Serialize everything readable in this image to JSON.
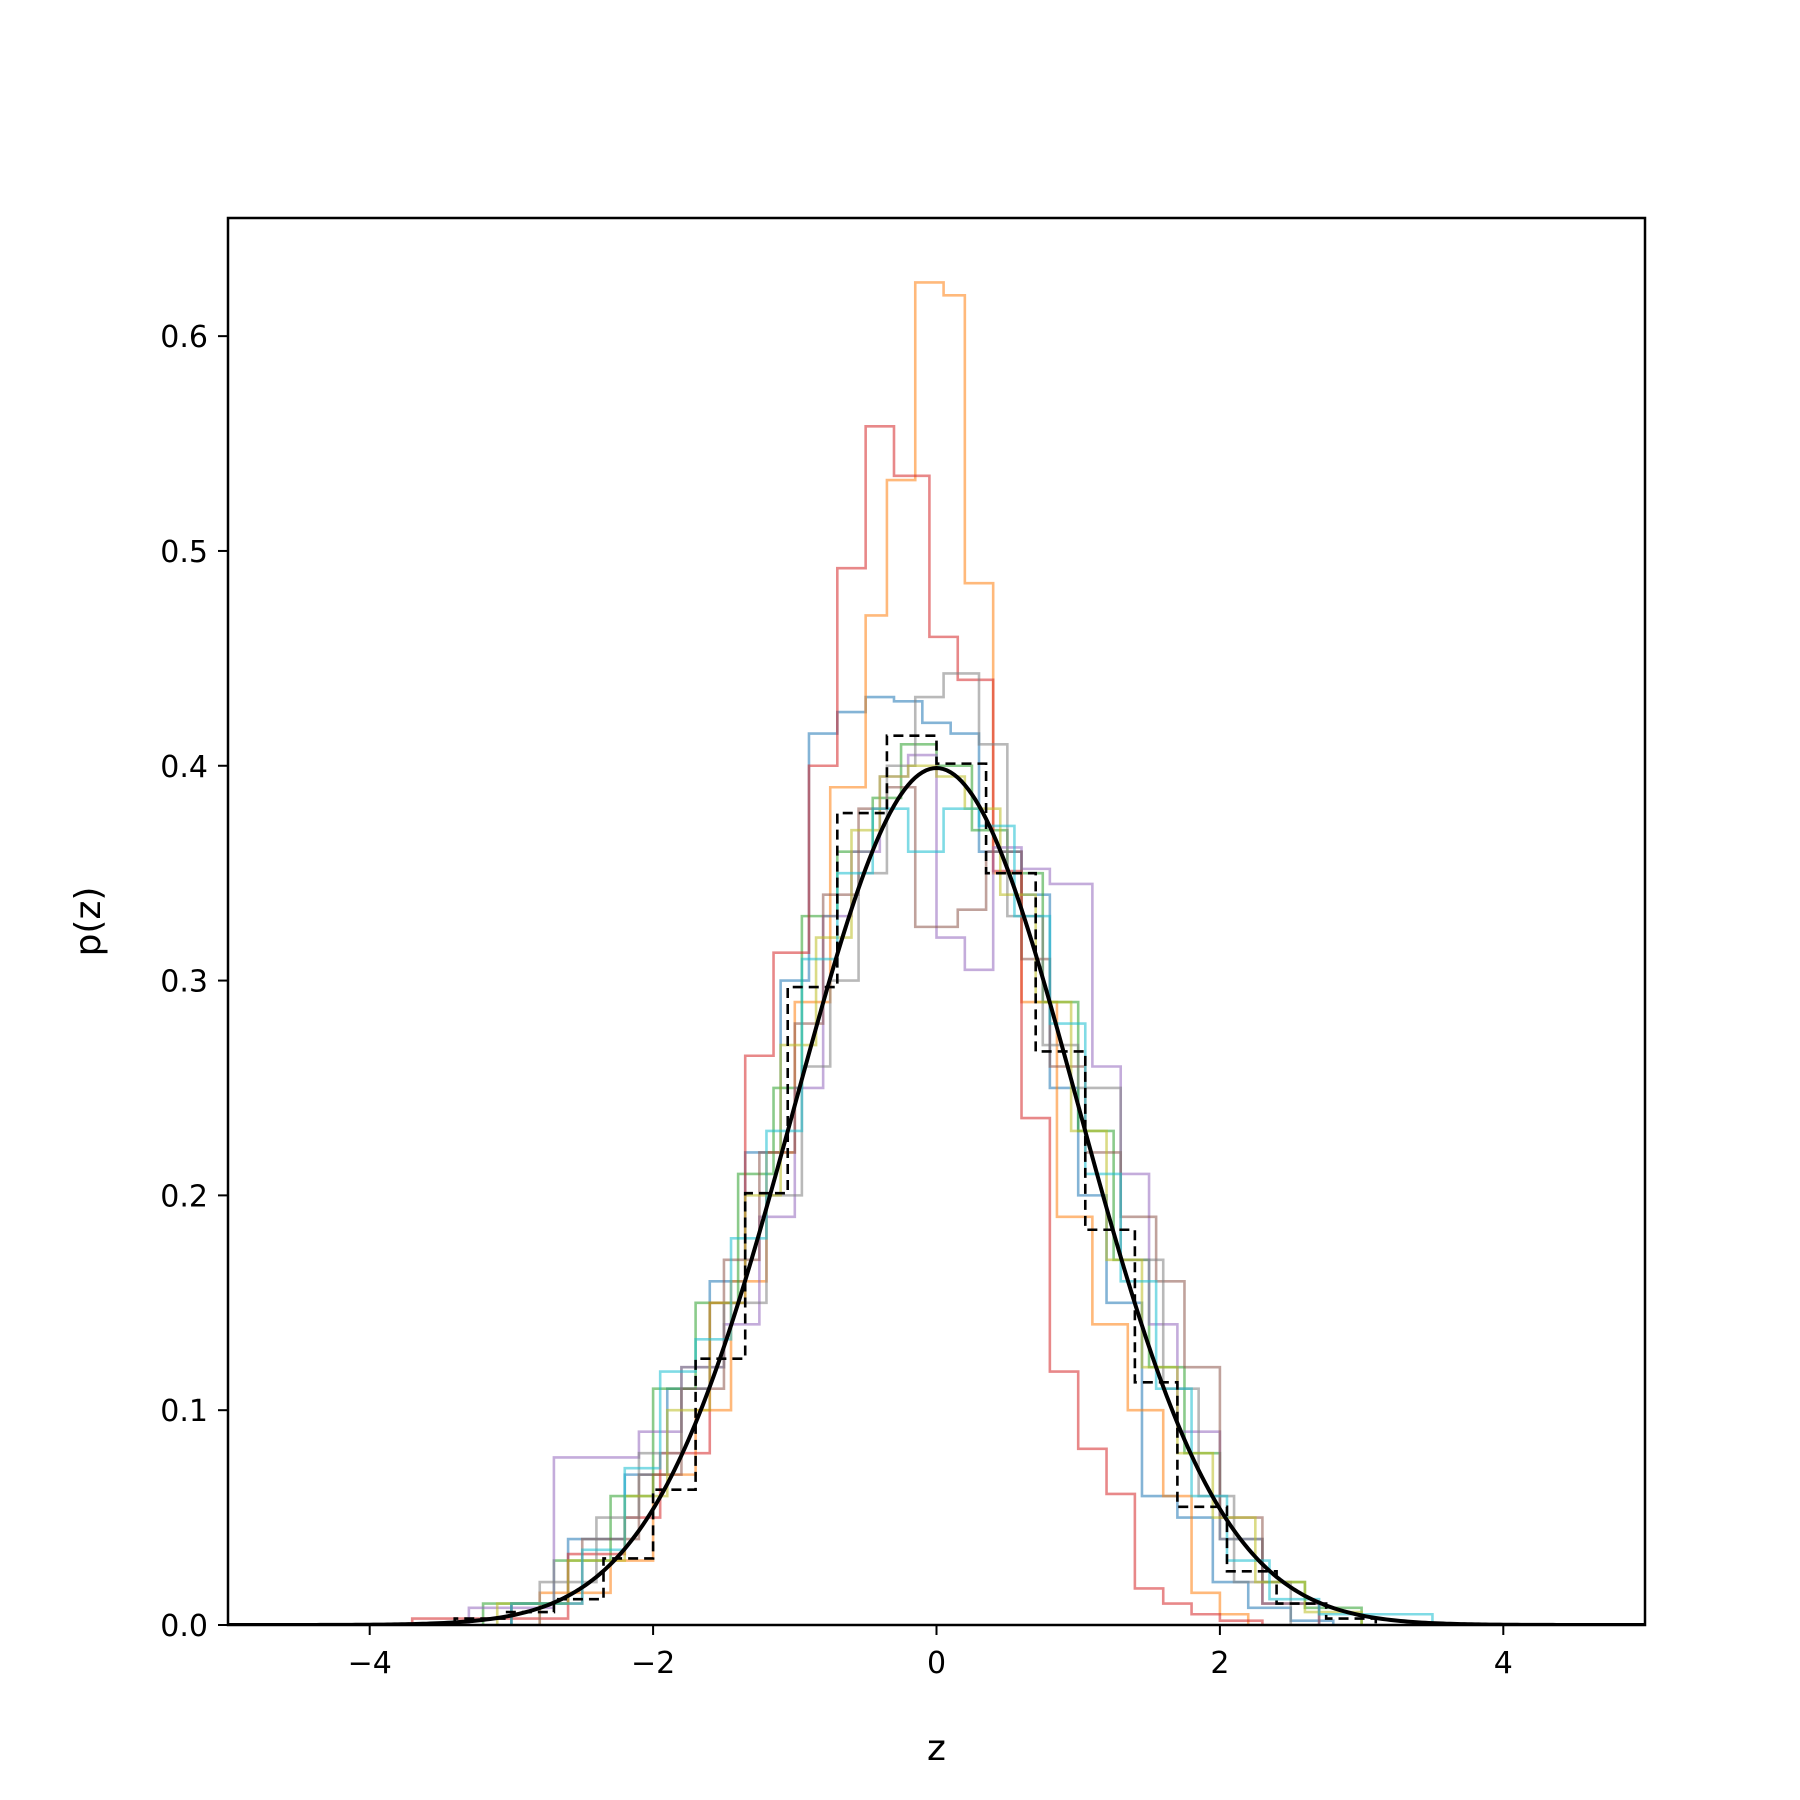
{
  "chart_data": {
    "type": "histogram",
    "title": "",
    "xlabel": "z",
    "ylabel": "p(z)",
    "xlim": [
      -5,
      5
    ],
    "ylim": [
      0,
      0.655
    ],
    "xticks": [
      -4,
      -2,
      0,
      2,
      4
    ],
    "xtick_labels": [
      "−4",
      "−2",
      "0",
      "2",
      "4"
    ],
    "yticks": [
      0.0,
      0.1,
      0.2,
      0.3,
      0.4,
      0.5,
      0.6
    ],
    "ytick_labels": [
      "0.0",
      "0.1",
      "0.2",
      "0.3",
      "0.4",
      "0.5",
      "0.6"
    ],
    "grid": false,
    "legend": "none",
    "series": [
      {
        "color": "#1f77b4",
        "style": "step",
        "alpha": 0.55,
        "edges": [
          -3.0,
          -2.6,
          -2.2,
          -1.9,
          -1.6,
          -1.35,
          -1.1,
          -0.9,
          -0.7,
          -0.5,
          -0.3,
          -0.1,
          0.1,
          0.3,
          0.6,
          0.8,
          1.0,
          1.2,
          1.45,
          1.7,
          1.95,
          2.2,
          2.5,
          2.8
        ],
        "values": [
          0.01,
          0.04,
          0.07,
          0.11,
          0.16,
          0.22,
          0.3,
          0.415,
          0.425,
          0.432,
          0.43,
          0.42,
          0.415,
          0.36,
          0.34,
          0.25,
          0.2,
          0.15,
          0.06,
          0.05,
          0.02,
          0.008,
          0.002
        ]
      },
      {
        "color": "#ff7f0e",
        "style": "step",
        "alpha": 0.55,
        "edges": [
          -2.8,
          -2.3,
          -2.0,
          -1.7,
          -1.45,
          -1.2,
          -1.0,
          -0.75,
          -0.5,
          -0.35,
          -0.15,
          0.05,
          0.2,
          0.4,
          0.6,
          0.85,
          1.1,
          1.35,
          1.6,
          1.8,
          2.0,
          2.2
        ],
        "values": [
          0.015,
          0.03,
          0.07,
          0.1,
          0.16,
          0.22,
          0.29,
          0.39,
          0.47,
          0.533,
          0.625,
          0.619,
          0.485,
          0.35,
          0.29,
          0.19,
          0.14,
          0.1,
          0.06,
          0.015,
          0.005
        ]
      },
      {
        "color": "#2ca02c",
        "style": "step",
        "alpha": 0.55,
        "edges": [
          -3.2,
          -2.7,
          -2.3,
          -2.0,
          -1.7,
          -1.4,
          -1.15,
          -0.95,
          -0.7,
          -0.45,
          -0.25,
          0.0,
          0.25,
          0.5,
          0.75,
          1.0,
          1.25,
          1.5,
          1.75,
          2.0,
          2.3,
          2.6,
          3.0
        ],
        "values": [
          0.01,
          0.03,
          0.06,
          0.11,
          0.15,
          0.21,
          0.25,
          0.33,
          0.36,
          0.385,
          0.41,
          0.4,
          0.37,
          0.35,
          0.29,
          0.23,
          0.17,
          0.12,
          0.08,
          0.04,
          0.02,
          0.008
        ]
      },
      {
        "color": "#d62728",
        "style": "step",
        "alpha": 0.55,
        "edges": [
          -3.7,
          -2.6,
          -2.2,
          -1.95,
          -1.6,
          -1.35,
          -1.15,
          -0.9,
          -0.7,
          -0.5,
          -0.3,
          -0.05,
          0.15,
          0.4,
          0.6,
          0.8,
          1.0,
          1.2,
          1.4,
          1.6,
          1.8,
          2.0,
          2.3
        ],
        "values": [
          0.003,
          0.033,
          0.05,
          0.08,
          0.15,
          0.265,
          0.313,
          0.4,
          0.492,
          0.558,
          0.535,
          0.46,
          0.44,
          0.351,
          0.236,
          0.118,
          0.082,
          0.061,
          0.017,
          0.01,
          0.005,
          0.002
        ]
      },
      {
        "color": "#9467bd",
        "style": "step",
        "alpha": 0.55,
        "edges": [
          -3.3,
          -2.7,
          -2.1,
          -1.8,
          -1.5,
          -1.25,
          -1.0,
          -0.8,
          -0.6,
          -0.4,
          -0.2,
          0.0,
          0.2,
          0.4,
          0.6,
          0.8,
          1.1,
          1.3,
          1.5,
          1.7,
          2.0,
          2.3,
          2.7
        ],
        "values": [
          0.008,
          0.078,
          0.09,
          0.12,
          0.14,
          0.19,
          0.25,
          0.33,
          0.36,
          0.395,
          0.405,
          0.32,
          0.305,
          0.362,
          0.352,
          0.345,
          0.26,
          0.21,
          0.14,
          0.09,
          0.04,
          0.01
        ]
      },
      {
        "color": "#8c564b",
        "style": "step",
        "alpha": 0.55,
        "edges": [
          -3.0,
          -2.5,
          -2.1,
          -1.8,
          -1.5,
          -1.25,
          -1.0,
          -0.8,
          -0.55,
          -0.35,
          -0.15,
          0.15,
          0.35,
          0.6,
          0.8,
          1.05,
          1.3,
          1.55,
          1.75,
          2.0,
          2.3,
          2.7
        ],
        "values": [
          0.01,
          0.04,
          0.07,
          0.11,
          0.17,
          0.22,
          0.28,
          0.34,
          0.38,
          0.39,
          0.325,
          0.333,
          0.36,
          0.31,
          0.26,
          0.22,
          0.19,
          0.16,
          0.12,
          0.05,
          0.01
        ]
      },
      {
        "color": "#7f7f7f",
        "style": "step",
        "alpha": 0.55,
        "edges": [
          -2.8,
          -2.4,
          -2.1,
          -1.8,
          -1.5,
          -1.2,
          -0.95,
          -0.75,
          -0.55,
          -0.35,
          -0.15,
          0.05,
          0.3,
          0.5,
          0.75,
          1.0,
          1.3,
          1.6,
          1.85,
          2.1,
          2.5
        ],
        "values": [
          0.02,
          0.05,
          0.08,
          0.12,
          0.15,
          0.2,
          0.26,
          0.3,
          0.35,
          0.4,
          0.432,
          0.443,
          0.41,
          0.33,
          0.27,
          0.25,
          0.17,
          0.11,
          0.06,
          0.02
        ]
      },
      {
        "color": "#bcbd22",
        "style": "step",
        "alpha": 0.55,
        "edges": [
          -3.1,
          -2.6,
          -2.2,
          -1.9,
          -1.6,
          -1.35,
          -1.1,
          -0.85,
          -0.6,
          -0.4,
          -0.2,
          0.0,
          0.2,
          0.45,
          0.7,
          0.95,
          1.2,
          1.45,
          1.7,
          1.95,
          2.25,
          2.6,
          3.0
        ],
        "values": [
          0.01,
          0.03,
          0.06,
          0.1,
          0.15,
          0.2,
          0.27,
          0.32,
          0.37,
          0.395,
          0.4,
          0.395,
          0.38,
          0.34,
          0.29,
          0.23,
          0.17,
          0.12,
          0.08,
          0.05,
          0.02,
          0.006
        ]
      },
      {
        "color": "#17becf",
        "style": "step",
        "alpha": 0.55,
        "edges": [
          -3.0,
          -2.5,
          -2.2,
          -1.95,
          -1.7,
          -1.45,
          -1.2,
          -0.95,
          -0.7,
          -0.45,
          -0.2,
          0.05,
          0.3,
          0.55,
          0.8,
          1.05,
          1.3,
          1.55,
          1.8,
          2.05,
          2.35,
          2.7,
          3.5
        ],
        "values": [
          0.01,
          0.035,
          0.073,
          0.118,
          0.133,
          0.18,
          0.23,
          0.31,
          0.35,
          0.38,
          0.36,
          0.38,
          0.372,
          0.33,
          0.28,
          0.21,
          0.16,
          0.11,
          0.06,
          0.03,
          0.012,
          0.005
        ]
      },
      {
        "color": "#000000",
        "style": "dashed-step",
        "alpha": 1.0,
        "edges": [
          -3.4,
          -3.05,
          -2.7,
          -2.35,
          -2.0,
          -1.7,
          -1.35,
          -1.05,
          -0.7,
          -0.35,
          0.0,
          0.35,
          0.7,
          1.05,
          1.4,
          1.7,
          2.05,
          2.4,
          2.75,
          3.1
        ],
        "values": [
          0.003,
          0.006,
          0.012,
          0.031,
          0.063,
          0.124,
          0.201,
          0.297,
          0.378,
          0.414,
          0.401,
          0.35,
          0.267,
          0.184,
          0.113,
          0.055,
          0.025,
          0.01,
          0.003
        ]
      },
      {
        "color": "#000000",
        "style": "line",
        "alpha": 1.0,
        "function": "standard normal pdf",
        "mean": 0,
        "sd": 1,
        "x_range": [
          -5,
          5
        ]
      }
    ]
  }
}
